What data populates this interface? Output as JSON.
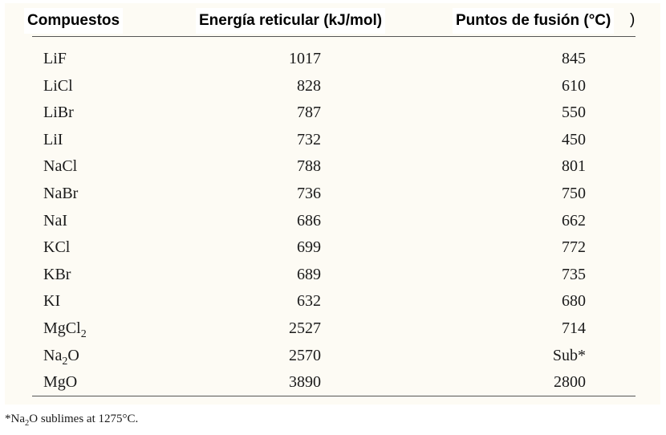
{
  "table": {
    "headers": {
      "compound": "Compuestos",
      "lattice_energy": "Energía reticular (kJ/mol)",
      "melting_point": "Puntos de fusión (°C)"
    },
    "header_tail": ")",
    "rows": [
      {
        "compound": "LiF",
        "energy": "1017",
        "melting": "845"
      },
      {
        "compound": "LiCl",
        "energy": "828",
        "melting": "610"
      },
      {
        "compound": "LiBr",
        "energy": "787",
        "melting": "550"
      },
      {
        "compound": "LiI",
        "energy": "732",
        "melting": "450"
      },
      {
        "compound": "NaCl",
        "energy": "788",
        "melting": "801"
      },
      {
        "compound": "NaBr",
        "energy": "736",
        "melting": "750"
      },
      {
        "compound": "NaI",
        "energy": "686",
        "melting": "662"
      },
      {
        "compound": "KCl",
        "energy": "699",
        "melting": "772"
      },
      {
        "compound": "KBr",
        "energy": "689",
        "melting": "735"
      },
      {
        "compound": "KI",
        "energy": "632",
        "melting": "680"
      },
      {
        "compound": "MgCl",
        "compound_sub": "2",
        "compound_after": "",
        "energy": "2527",
        "melting": "714"
      },
      {
        "compound": "Na",
        "compound_sub": "2",
        "compound_after": "O",
        "energy": "2570",
        "melting": "Sub*"
      },
      {
        "compound": "MgO",
        "energy": "3890",
        "melting": "2800"
      }
    ]
  },
  "footnote": {
    "prefix": "*Na",
    "sub": "2",
    "suffix": "O sublimes at 1275°C."
  }
}
